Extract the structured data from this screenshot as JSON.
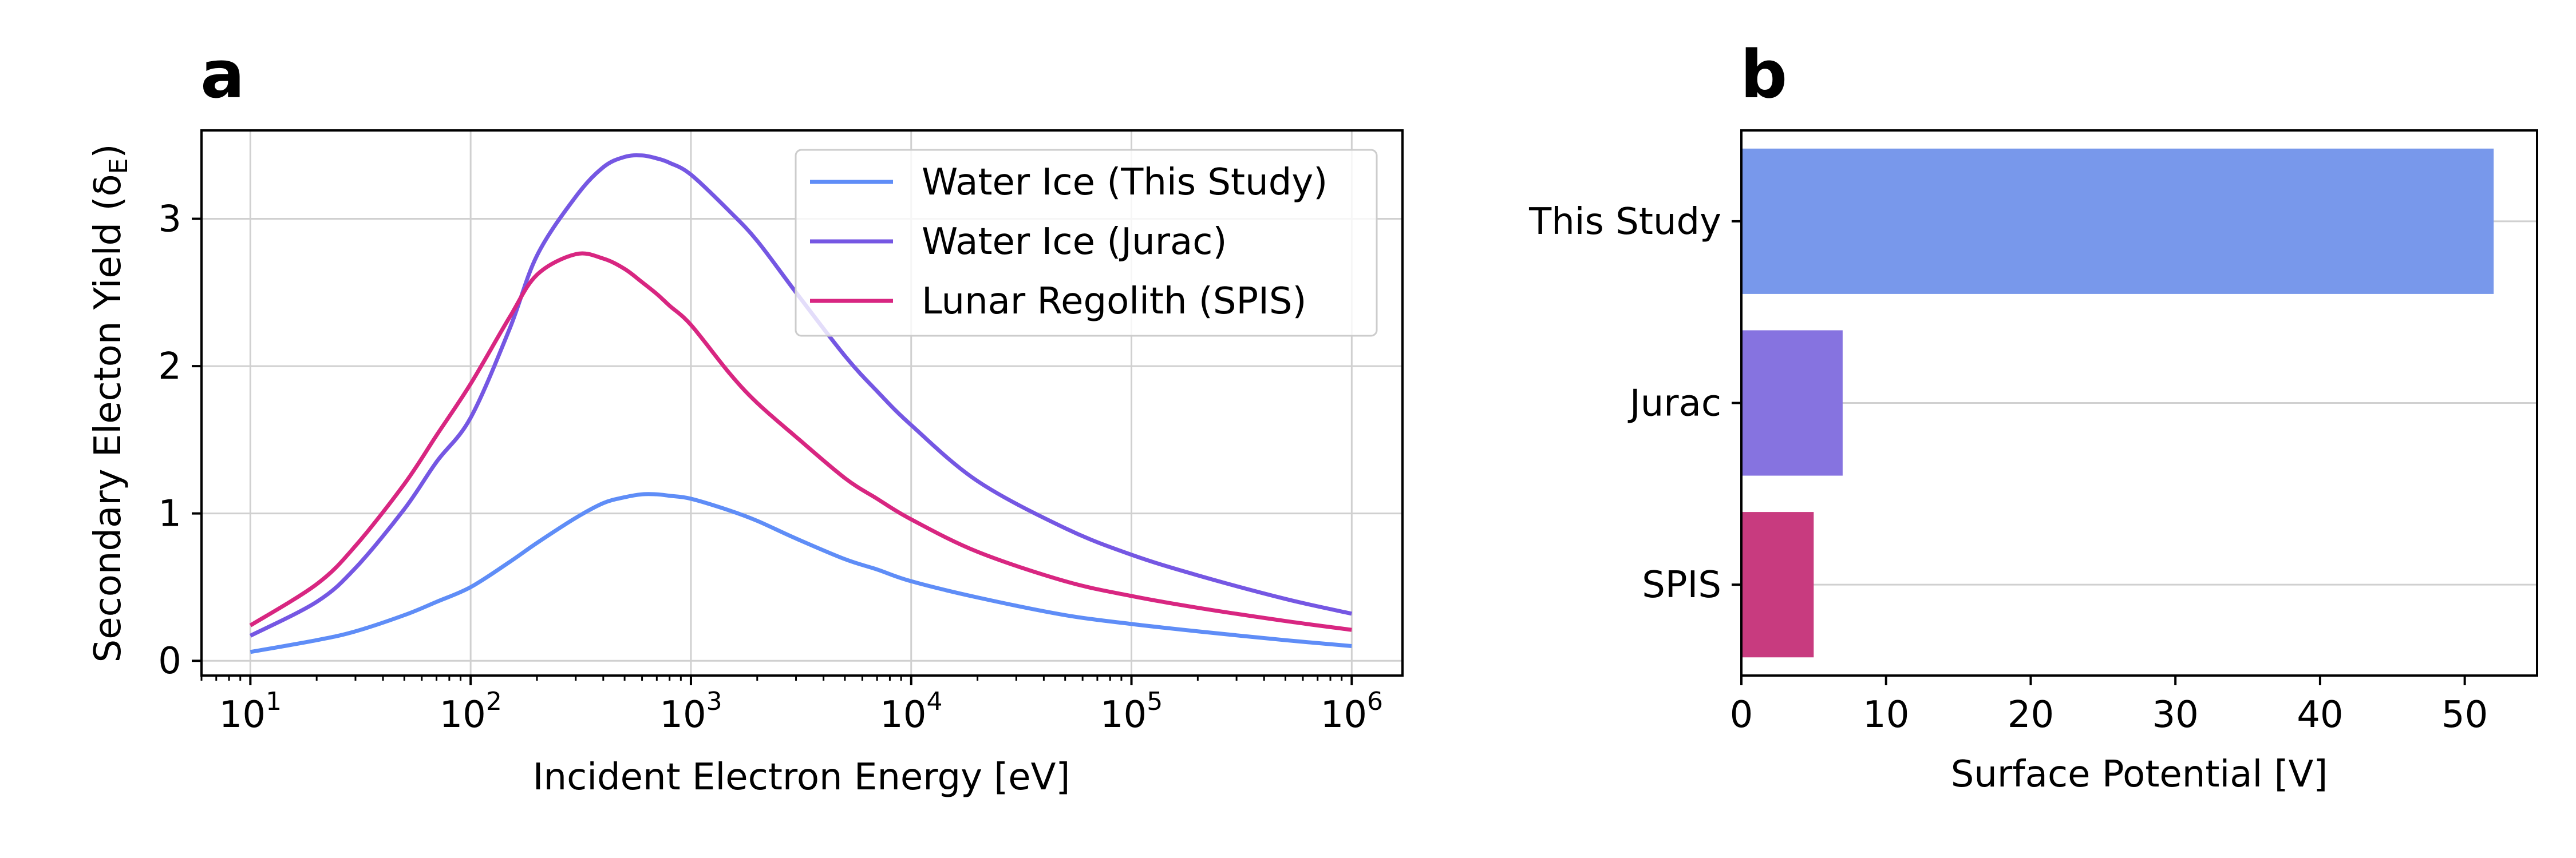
{
  "chart_data": [
    {
      "panel_label": "a",
      "type": "line",
      "xlabel": "Incident Electron Energy [eV]",
      "ylabel": "Secondary Electon Yield (δ",
      "ylabel_sub": "E",
      "ylabel_close": ")",
      "xscale": "log",
      "xlim": [
        6,
        1700000
      ],
      "ylim": [
        -0.1,
        3.6
      ],
      "xticks": [
        {
          "value": 10,
          "base": "10",
          "exp": "1"
        },
        {
          "value": 100,
          "base": "10",
          "exp": "2"
        },
        {
          "value": 1000,
          "base": "10",
          "exp": "3"
        },
        {
          "value": 10000,
          "base": "10",
          "exp": "4"
        },
        {
          "value": 100000,
          "base": "10",
          "exp": "5"
        },
        {
          "value": 1000000,
          "base": "10",
          "exp": "6"
        }
      ],
      "yticks": [
        "0",
        "1",
        "2",
        "3"
      ],
      "grid": true,
      "legend_position": "upper right",
      "x": [
        10,
        20,
        30,
        50,
        70,
        100,
        150,
        200,
        300,
        400,
        500,
        600,
        700,
        800,
        1000,
        1500,
        2000,
        3000,
        5000,
        7000,
        10000,
        20000,
        50000,
        100000,
        200000,
        500000,
        1000000
      ],
      "series": [
        {
          "name": "Water Ice (This Study)",
          "color": "#5f8df7",
          "values": [
            0.06,
            0.14,
            0.2,
            0.31,
            0.4,
            0.5,
            0.67,
            0.8,
            0.97,
            1.07,
            1.11,
            1.13,
            1.13,
            1.12,
            1.1,
            1.02,
            0.95,
            0.83,
            0.69,
            0.62,
            0.54,
            0.43,
            0.31,
            0.25,
            0.2,
            0.14,
            0.1
          ]
        },
        {
          "name": "Water Ice (Jurac)",
          "color": "#7557e3",
          "values": [
            0.17,
            0.4,
            0.63,
            1.03,
            1.35,
            1.65,
            2.25,
            2.75,
            3.15,
            3.35,
            3.42,
            3.43,
            3.41,
            3.38,
            3.3,
            3.05,
            2.85,
            2.5,
            2.07,
            1.83,
            1.6,
            1.22,
            0.9,
            0.72,
            0.58,
            0.42,
            0.32
          ]
        },
        {
          "name": "Lunar Regolith (SPIS)",
          "color": "#d82681",
          "values": [
            0.24,
            0.52,
            0.78,
            1.2,
            1.53,
            1.88,
            2.33,
            2.62,
            2.76,
            2.73,
            2.66,
            2.57,
            2.49,
            2.41,
            2.28,
            1.95,
            1.75,
            1.52,
            1.24,
            1.1,
            0.96,
            0.74,
            0.54,
            0.44,
            0.36,
            0.27,
            0.21
          ]
        }
      ]
    },
    {
      "panel_label": "b",
      "type": "bar",
      "orientation": "horizontal",
      "xlabel": "Surface Potential [V]",
      "xlim": [
        0,
        55
      ],
      "xticks": [
        "0",
        "10",
        "20",
        "30",
        "40",
        "50"
      ],
      "grid": "horizontal",
      "categories": [
        "This Study",
        "Jurac",
        "SPIS"
      ],
      "values": [
        52,
        7,
        5
      ],
      "colors": [
        "#7898eb",
        "#8673e0",
        "#c83b7f"
      ]
    }
  ]
}
